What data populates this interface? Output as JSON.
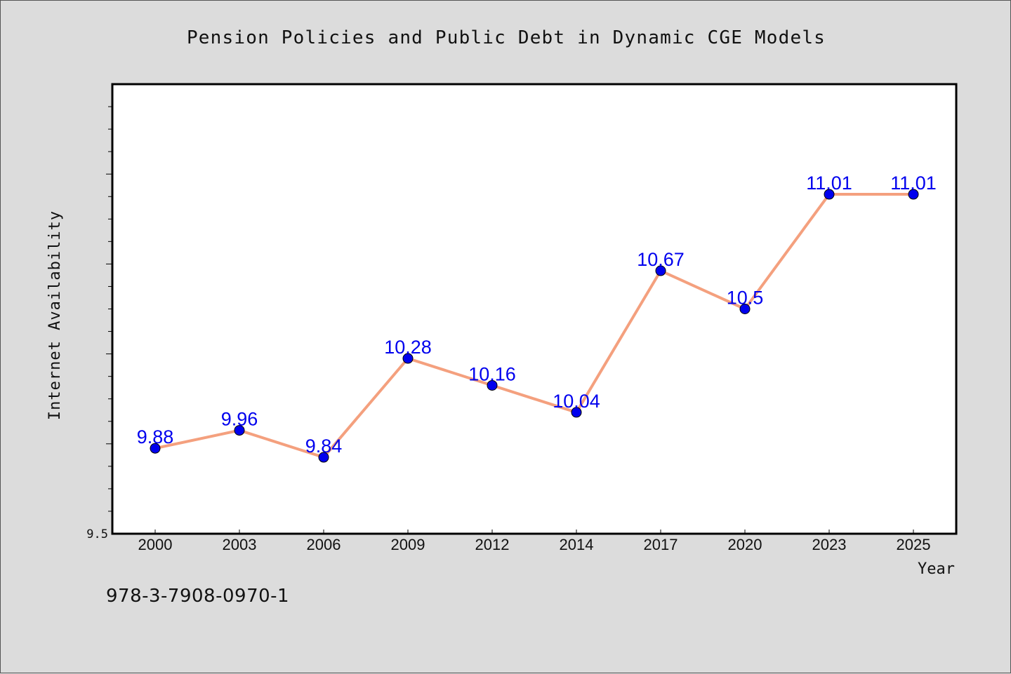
{
  "chart_data": {
    "type": "line",
    "title": "Pension Policies and Public Debt in Dynamic CGE Models",
    "xlabel": "Year",
    "ylabel": "Internet Availability",
    "categories": [
      "2000",
      "2003",
      "2006",
      "2009",
      "2012",
      "2014",
      "2017",
      "2020",
      "2023",
      "2025"
    ],
    "series": [
      {
        "values": [
          9.88,
          9.96,
          9.84,
          10.28,
          10.16,
          10.04,
          10.67,
          10.5,
          11.01,
          11.01
        ],
        "labels": [
          "9.88",
          "9.96",
          "9.84",
          "10.28",
          "10.16",
          "10.04",
          "10.67",
          "10.5",
          "11.01",
          "11.01"
        ],
        "line_color": "#f4a07e",
        "marker_color": "#0000ee",
        "label_color": "#0000ee"
      }
    ],
    "ylim": [
      9.5,
      11.5
    ],
    "y_tick_labels": [
      "9.5"
    ],
    "y_minor_tick_step": 0.1,
    "grid": false,
    "legend": "none"
  },
  "footer": {
    "isbn": "978-3-7908-0970-1"
  },
  "colors": {
    "background": "#dcdcdc",
    "plot_background": "#ffffff",
    "axis": "#000000"
  }
}
